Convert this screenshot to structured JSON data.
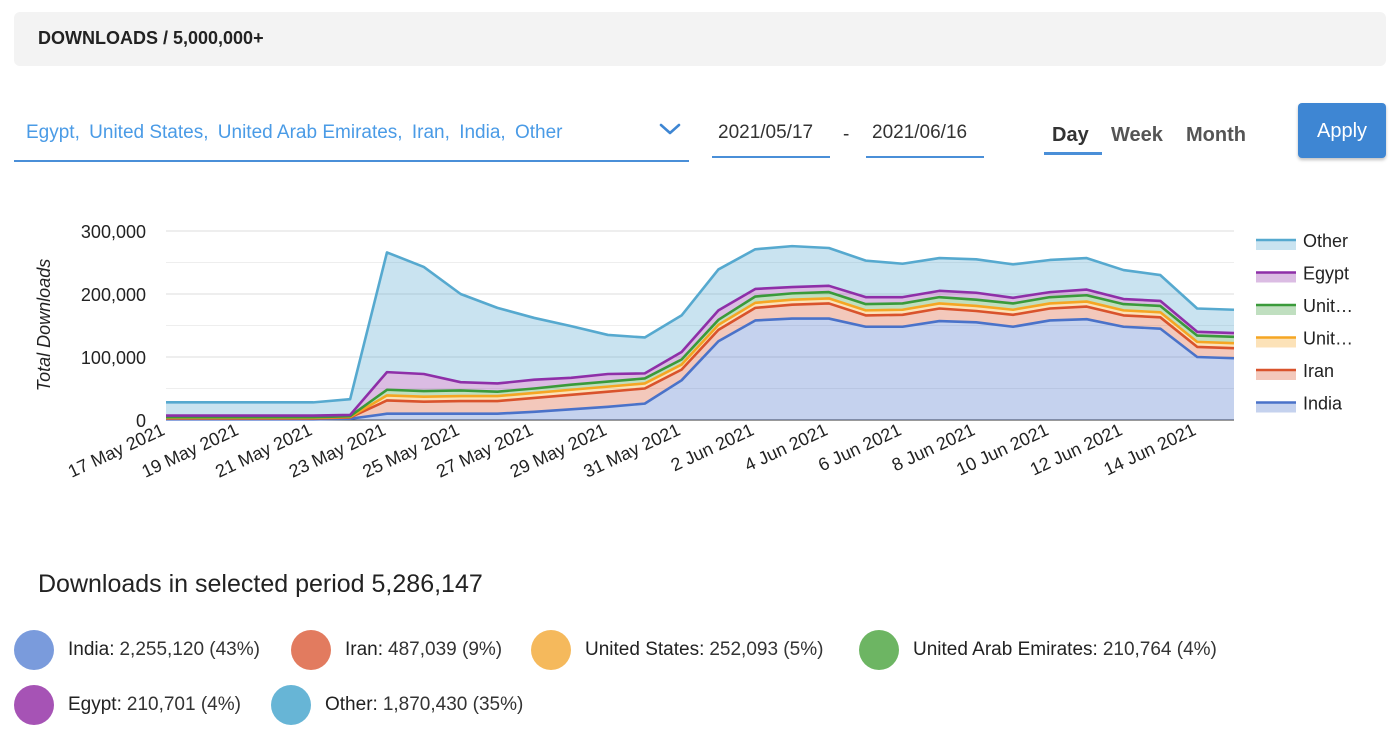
{
  "header": {
    "title": "DOWNLOADS / 5,000,000+"
  },
  "filter": {
    "countries": [
      "Egypt,",
      "United States,",
      "United Arab Emirates,",
      "Iran,",
      "India,",
      "Other"
    ],
    "chevron_icon": "chevron-down-icon"
  },
  "dates": {
    "start": "2021/05/17",
    "separator": "-",
    "end": "2021/06/16"
  },
  "periods": {
    "day": "Day",
    "week": "Week",
    "month": "Month",
    "selected": "Day"
  },
  "apply_label": "Apply",
  "colors": {
    "accent": "#3e86d3",
    "India": "#4a72c9",
    "Iran": "#d9532c",
    "United States": "#f5a623",
    "United Arab Emirates": "#3a9a3a",
    "Egypt": "#8e2fa8",
    "Other": "#56a9cf"
  },
  "chart_data": {
    "type": "area",
    "stacked": true,
    "ylabel": "Total Downloads",
    "xlabel": "",
    "ylim": [
      0,
      300000
    ],
    "yticks": [
      "0",
      "100,000",
      "200,000",
      "300,000"
    ],
    "x": [
      "17 May 2021",
      "18 May 2021",
      "19 May 2021",
      "20 May 2021",
      "21 May 2021",
      "22 May 2021",
      "23 May 2021",
      "24 May 2021",
      "25 May 2021",
      "26 May 2021",
      "27 May 2021",
      "28 May 2021",
      "29 May 2021",
      "30 May 2021",
      "31 May 2021",
      "1 Jun 2021",
      "2 Jun 2021",
      "3 Jun 2021",
      "4 Jun 2021",
      "5 Jun 2021",
      "6 Jun 2021",
      "7 Jun 2021",
      "8 Jun 2021",
      "9 Jun 2021",
      "10 Jun 2021",
      "11 Jun 2021",
      "12 Jun 2021",
      "13 Jun 2021",
      "14 Jun 2021",
      "15 Jun 2021"
    ],
    "xtick_labels": [
      "17 May 2021",
      "19 May 2021",
      "21 May 2021",
      "23 May 2021",
      "25 May 2021",
      "27 May 2021",
      "29 May 2021",
      "31 May 2021",
      "2 Jun 2021",
      "4 Jun 2021",
      "6 Jun 2021",
      "8 Jun 2021",
      "10 Jun 2021",
      "12 Jun 2021",
      "14 Jun 2021"
    ],
    "legend_position": "right",
    "legend": [
      "Other",
      "Egypt",
      "Unit…",
      "Unit…",
      "Iran",
      "India"
    ],
    "series": [
      {
        "name": "India",
        "values": [
          1000,
          1000,
          1000,
          1000,
          1000,
          2000,
          10000,
          10000,
          10000,
          10000,
          13000,
          17000,
          21000,
          26000,
          63000,
          125000,
          158000,
          161000,
          161000,
          148000,
          148000,
          157000,
          155000,
          148000,
          158000,
          160000,
          148000,
          145000,
          100000,
          98000
        ]
      },
      {
        "name": "Iran",
        "values": [
          1500,
          1500,
          1500,
          1500,
          1500,
          2000,
          21000,
          19000,
          20000,
          20000,
          22000,
          23000,
          24000,
          24000,
          17000,
          18000,
          20000,
          22000,
          24000,
          18000,
          19000,
          20000,
          18000,
          19000,
          19000,
          20000,
          18000,
          18000,
          16000,
          16000
        ]
      },
      {
        "name": "United States",
        "values": [
          1000,
          1000,
          1000,
          1000,
          1000,
          1000,
          8000,
          8000,
          8000,
          8000,
          8000,
          8000,
          8000,
          8000,
          8000,
          8000,
          8000,
          8000,
          8000,
          8000,
          8000,
          8000,
          8000,
          8000,
          8000,
          8000,
          8000,
          8000,
          8000,
          8000
        ]
      },
      {
        "name": "United Arab Emirates",
        "values": [
          1000,
          1000,
          1000,
          1000,
          1000,
          1000,
          9000,
          9000,
          9000,
          7000,
          7000,
          8000,
          8000,
          8000,
          8000,
          8000,
          10000,
          10000,
          10000,
          10000,
          10000,
          10000,
          10000,
          10000,
          10000,
          10000,
          10000,
          10000,
          10000,
          10000
        ]
      },
      {
        "name": "Egypt",
        "values": [
          2500,
          2500,
          2500,
          2500,
          2500,
          2000,
          28000,
          27000,
          13000,
          13000,
          14000,
          11000,
          12000,
          8000,
          12000,
          15000,
          12000,
          10000,
          10000,
          11000,
          10000,
          10000,
          11000,
          9000,
          8000,
          9000,
          8000,
          8000,
          6000,
          6000
        ]
      },
      {
        "name": "Other",
        "values": [
          21000,
          21000,
          21000,
          21000,
          21000,
          25000,
          190000,
          170000,
          140000,
          120000,
          98000,
          82000,
          62000,
          57000,
          58000,
          65000,
          63000,
          65000,
          60000,
          58000,
          53000,
          52000,
          53000,
          53000,
          51000,
          50000,
          46000,
          41000,
          37000,
          37000
        ]
      }
    ]
  },
  "summary": {
    "label": "Downloads in selected period 5,286,147"
  },
  "stats": [
    {
      "country": "India:",
      "value": "2,255,120 (43%)"
    },
    {
      "country": "Iran:",
      "value": "487,039 (9%)"
    },
    {
      "country": "United States:",
      "value": "252,093 (5%)"
    },
    {
      "country": "United Arab Emirates:",
      "value": "210,764 (4%)"
    },
    {
      "country": "Egypt:",
      "value": "210,701 (4%)"
    },
    {
      "country": "Other:",
      "value": "1,870,430 (35%)"
    }
  ]
}
